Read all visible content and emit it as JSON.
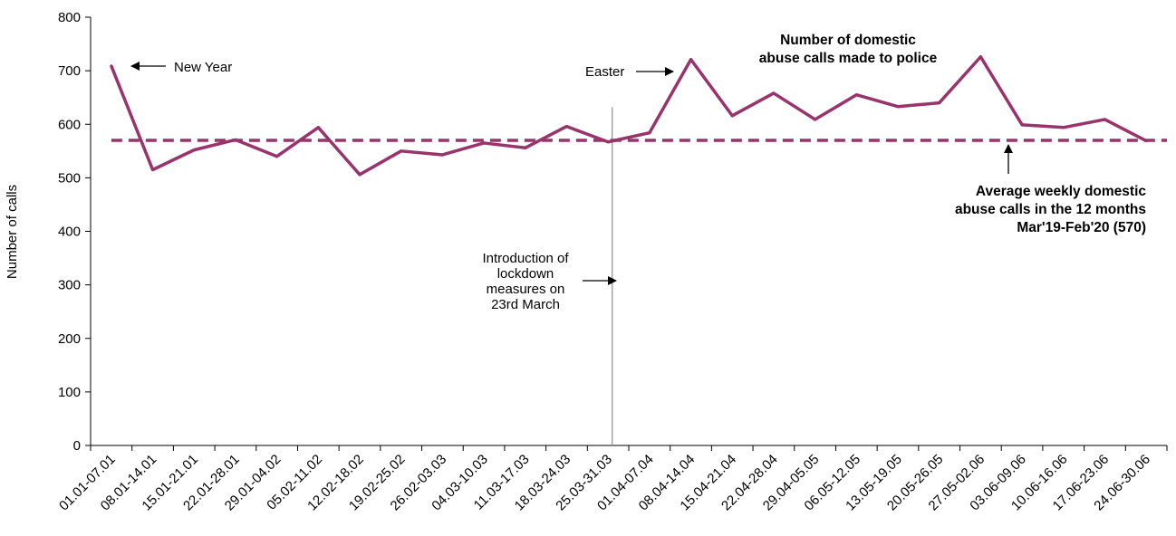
{
  "chart_data": {
    "type": "line",
    "title": "",
    "xlabel": "",
    "ylabel": "Number of calls",
    "ylim": [
      0,
      800
    ],
    "yticks": [
      0,
      100,
      200,
      300,
      400,
      500,
      600,
      700,
      800
    ],
    "categories": [
      "01.01-07.01",
      "08.01-14.01",
      "15.01-21.01",
      "22.01-28.01",
      "29.01-04.02",
      "05.02-11.02",
      "12.02-18.02",
      "19.02-25.02",
      "26.02-03.03",
      "04.03-10.03",
      "11.03-17.03",
      "18.03-24.03",
      "25.03-31.03",
      "01.04-07.04",
      "08.04-14.04",
      "15.04-21.04",
      "22.04-28.04",
      "29.04-05.05",
      "06.05-12.05",
      "13.05-19.05",
      "20.05-26.05",
      "27.05-02.06",
      "03.06-09.06",
      "10.06-16.06",
      "17.06-23.06",
      "24.06-30.06"
    ],
    "series": [
      {
        "name": "Number of domestic abuse calls made to police",
        "color": "#99336b",
        "values": [
          709,
          515,
          552,
          571,
          540,
          594,
          506,
          550,
          543,
          565,
          556,
          596,
          567,
          584,
          721,
          616,
          658,
          609,
          655,
          633,
          640,
          726,
          599,
          594,
          609,
          569
        ]
      }
    ],
    "average": {
      "value": 570,
      "color": "#99336b",
      "style": "dashed"
    },
    "lockdown_marker": {
      "after_category": "25.03-31.03",
      "color": "#8c8c8c"
    },
    "annotations": {
      "new_year": "New Year",
      "easter": "Easter",
      "series_label": [
        "Number of domestic",
        "abuse calls made to police"
      ],
      "lockdown_label": [
        "Introduction of",
        "lockdown",
        "measures on",
        "23rd March"
      ],
      "average_label": [
        "Average weekly domestic",
        "abuse calls in the 12 months",
        "Mar'19-Feb'20  (570)"
      ]
    },
    "grid": false,
    "legend": "none"
  }
}
